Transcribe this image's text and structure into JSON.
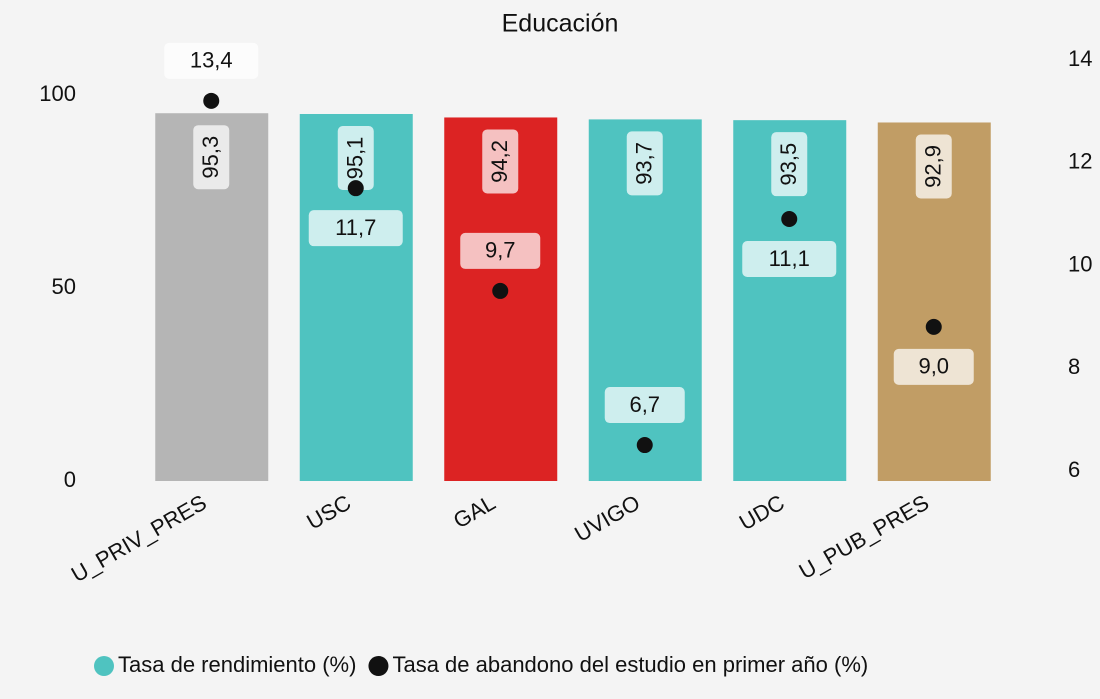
{
  "chart_data": {
    "type": "bar",
    "title": "Educación",
    "categories": [
      "U_PRIV_PRES",
      "USC",
      "GAL",
      "UVIGO",
      "UDC",
      "U_PUB_PRES"
    ],
    "series": [
      {
        "name": "Tasa de rendimiento (%)",
        "color": "#4fc3c0",
        "colors": [
          "#b5b5b5",
          "#4fc3c0",
          "#dc2323",
          "#4fc3c0",
          "#4fc3c0",
          "#c19d65"
        ],
        "values": [
          95.3,
          95.1,
          94.2,
          93.7,
          93.5,
          92.9
        ],
        "value_labels": [
          "95,3",
          "95,1",
          "94,2",
          "93,7",
          "93,5",
          "92,9"
        ]
      },
      {
        "name": "Tasa de abandono del estudio en primer año (%)",
        "color": "#111111",
        "type": "scatter",
        "axis": "y2",
        "values": [
          13.4,
          11.7,
          9.7,
          6.7,
          11.1,
          9.0
        ],
        "value_labels": [
          "13,4",
          "11,7",
          "9,7",
          "6,7",
          "11,1",
          "9,0"
        ]
      }
    ],
    "ylim": [
      0,
      106.5
    ],
    "yticks": [
      0,
      50,
      100
    ],
    "y2lim": [
      6,
      14
    ],
    "y2ticks": [
      6,
      8,
      10,
      12,
      14
    ]
  }
}
